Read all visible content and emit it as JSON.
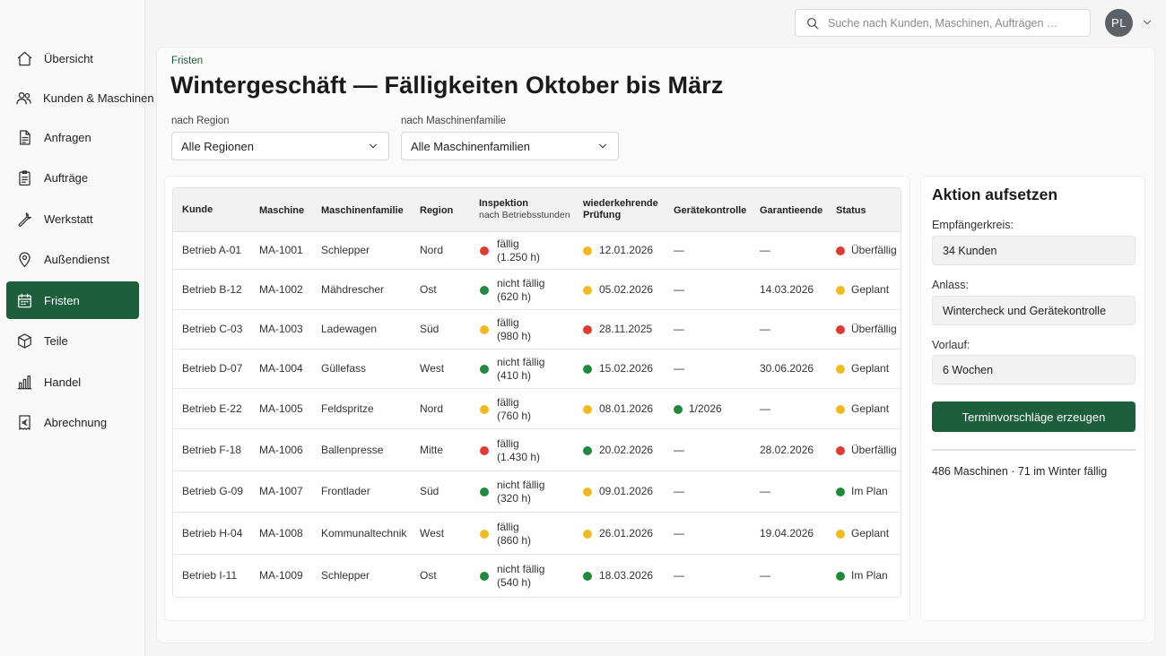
{
  "sidebar": {
    "items": [
      {
        "label": "Übersicht",
        "icon": "home-icon"
      },
      {
        "label": "Kunden & Maschinen",
        "icon": "users-icon"
      },
      {
        "label": "Anfragen",
        "icon": "document-icon"
      },
      {
        "label": "Aufträge",
        "icon": "clipboard-icon"
      },
      {
        "label": "Werkstatt",
        "icon": "wrench-icon"
      },
      {
        "label": "Außendienst",
        "icon": "map-pin-icon"
      },
      {
        "label": "Fristen",
        "icon": "calendar-icon",
        "active": true
      },
      {
        "label": "Teile",
        "icon": "box-icon"
      },
      {
        "label": "Handel",
        "icon": "bar-chart-icon"
      },
      {
        "label": "Abrechnung",
        "icon": "euro-receipt-icon"
      }
    ]
  },
  "topbar": {
    "search_placeholder": "Suche nach Kunden, Maschinen, Aufträgen …",
    "avatar_initials": "PL"
  },
  "page": {
    "breadcrumb": "Fristen",
    "title": "Wintergeschäft — Fälligkeiten Oktober bis März"
  },
  "filters": {
    "region_label": "nach Region",
    "region_value": "Alle Regionen",
    "family_label": "nach Maschinenfamilie",
    "family_value": "Alle Maschinenfamilien"
  },
  "table": {
    "headers": {
      "kunde": "Kunde",
      "maschine": "Maschine",
      "familie": "Maschinenfamilie",
      "region": "Region",
      "inspektion": "Inspektion",
      "inspektion_sub": "nach Betriebsstunden",
      "pruefung_1": "wiederkehrende",
      "pruefung_2": "Prüfung",
      "geraet": "Gerätekontrolle",
      "garantie": "Garantieende",
      "status": "Status"
    },
    "rows": [
      {
        "kunde": "Betrieb A-01",
        "maschine": "MA-1001",
        "familie": "Schlepper",
        "region": "Nord",
        "insp_status": "fällig",
        "insp_hours": "(1.250 h)",
        "insp_color": "#e03a32",
        "pruef": "12.01.2026",
        "pruef_color": "#f2b91f",
        "geraet": "—",
        "geraet_color": "",
        "garantie": "—",
        "status": "Überfällig",
        "status_color": "#e03a32"
      },
      {
        "kunde": "Betrieb B-12",
        "maschine": "MA-1002",
        "familie": "Mähdrescher",
        "region": "Ost",
        "insp_status": "nicht fällig",
        "insp_hours": "(620 h)",
        "insp_color": "#1f8a3b",
        "pruef": "05.02.2026",
        "pruef_color": "#f2b91f",
        "geraet": "—",
        "geraet_color": "",
        "garantie": "14.03.2026",
        "status": "Geplant",
        "status_color": "#f2b91f"
      },
      {
        "kunde": "Betrieb C-03",
        "maschine": "MA-1003",
        "familie": "Ladewagen",
        "region": "Süd",
        "insp_status": "fällig",
        "insp_hours": "(980 h)",
        "insp_color": "#f2b91f",
        "pruef": "28.11.2025",
        "pruef_color": "#e03a32",
        "geraet": "—",
        "geraet_color": "",
        "garantie": "—",
        "status": "Überfällig",
        "status_color": "#e03a32"
      },
      {
        "kunde": "Betrieb D-07",
        "maschine": "MA-1004",
        "familie": "Güllefass",
        "region": "West",
        "insp_status": "nicht fällig",
        "insp_hours": "(410 h)",
        "insp_color": "#1f8a3b",
        "pruef": "15.02.2026",
        "pruef_color": "#1f8a3b",
        "geraet": "—",
        "geraet_color": "",
        "garantie": "30.06.2026",
        "status": "Geplant",
        "status_color": "#f2b91f"
      },
      {
        "kunde": "Betrieb E-22",
        "maschine": "MA-1005",
        "familie": "Feldspritze",
        "region": "Nord",
        "insp_status": "fällig",
        "insp_hours": "(760 h)",
        "insp_color": "#f2b91f",
        "pruef": "08.01.2026",
        "pruef_color": "#f2b91f",
        "geraet": "1/2026",
        "geraet_color": "#1f8a3b",
        "garantie": "—",
        "status": "Geplant",
        "status_color": "#f2b91f"
      },
      {
        "kunde": "Betrieb F-18",
        "maschine": "MA-1006",
        "familie": "Ballenpresse",
        "region": "Mitte",
        "insp_status": "fällig",
        "insp_hours": "(1.430 h)",
        "insp_color": "#e03a32",
        "pruef": "20.02.2026",
        "pruef_color": "#1f8a3b",
        "geraet": "—",
        "geraet_color": "",
        "garantie": "28.02.2026",
        "status": "Überfällig",
        "status_color": "#e03a32"
      },
      {
        "kunde": "Betrieb G-09",
        "maschine": "MA-1007",
        "familie": "Frontlader",
        "region": "Süd",
        "insp_status": "nicht fällig",
        "insp_hours": "(320 h)",
        "insp_color": "#1f8a3b",
        "pruef": "09.01.2026",
        "pruef_color": "#f2b91f",
        "geraet": "—",
        "geraet_color": "",
        "garantie": "—",
        "status": "Im Plan",
        "status_color": "#1f8a3b"
      },
      {
        "kunde": "Betrieb H-04",
        "maschine": "MA-1008",
        "familie": "Kommunaltechnik",
        "region": "West",
        "insp_status": "fällig",
        "insp_hours": "(860 h)",
        "insp_color": "#f2b91f",
        "pruef": "26.01.2026",
        "pruef_color": "#f2b91f",
        "geraet": "—",
        "geraet_color": "",
        "garantie": "19.04.2026",
        "status": "Geplant",
        "status_color": "#f2b91f"
      },
      {
        "kunde": "Betrieb I-11",
        "maschine": "MA-1009",
        "familie": "Schlepper",
        "region": "Ost",
        "insp_status": "nicht fällig",
        "insp_hours": "(540 h)",
        "insp_color": "#1f8a3b",
        "pruef": "18.03.2026",
        "pruef_color": "#1f8a3b",
        "geraet": "—",
        "geraet_color": "",
        "garantie": "—",
        "status": "Im Plan",
        "status_color": "#1f8a3b"
      }
    ]
  },
  "action": {
    "title": "Aktion aufsetzen",
    "recipients_label": "Empfängerkreis:",
    "recipients_value": "34 Kunden",
    "reason_label": "Anlass:",
    "reason_value": "Wintercheck und Gerätekontrolle",
    "lead_label": "Vorlauf:",
    "lead_value": "6 Wochen",
    "button_label": "Terminvorschläge erzeugen",
    "summary": "486 Maschinen · 71 im Winter fällig"
  },
  "colors": {
    "accent": "#1d5e3c",
    "red": "#e03a32",
    "yellow": "#f2b91f",
    "green": "#1f8a3b"
  }
}
